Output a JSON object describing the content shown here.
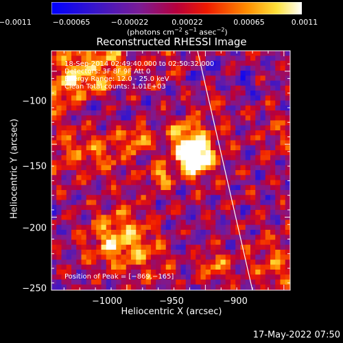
{
  "chart_data": {
    "type": "heatmap",
    "title": "Reconstructed RHESSI Image",
    "xlabel": "Heliocentric X (arcsec)",
    "ylabel": "Heliocentric Y (arcsec)",
    "xlim": [
      -1048,
      -896
    ],
    "ylim": [
      -250,
      -86
    ],
    "x_ticks": [
      -1000,
      -950,
      -900
    ],
    "y_ticks": [
      -100,
      -150,
      -200,
      -250
    ],
    "x_tick_labels": [
      "−1000",
      "−950",
      "−900"
    ],
    "y_tick_labels": [
      "−100",
      "−150",
      "−200",
      "−250"
    ],
    "colorbar": {
      "min": -0.0011,
      "max": 0.0011,
      "ticks": [
        -0.0011,
        -0.00065,
        -0.00022,
        0.00022,
        0.00065,
        0.0011
      ],
      "tick_labels": [
        "−0.0011",
        "−0.00065",
        "−0.00022",
        "0.00022",
        "0.00065",
        "0.0011"
      ],
      "unit_text": "(photons cm",
      "unit_exp1": "−2",
      "unit_mid1": " s",
      "unit_exp2": "−1",
      "unit_mid2": " asec",
      "unit_exp3": "−2",
      "unit_end": ")"
    },
    "annotations": {
      "time_range": "18-Sep-2014 02:49:40.000 to 02:50:32.000",
      "detectors": "Detectors: 3F 8F 9F  Att 0",
      "energy": "Energy Range: 12.0 - 25.0 keV",
      "clean": "Clean    Total counts: 1.01E+03",
      "peak": "Position of Peak = [−869,−165]"
    },
    "limb_line": {
      "points": [
        [
          -955,
          -86
        ],
        [
          -920,
          -250
        ]
      ]
    },
    "grid": false,
    "colormap": "blue-purple-red-yellow-white",
    "colors": {
      "background": "#000000",
      "foreground": "#ffffff"
    }
  },
  "footer": {
    "date": "17-May-2022 07:50"
  }
}
